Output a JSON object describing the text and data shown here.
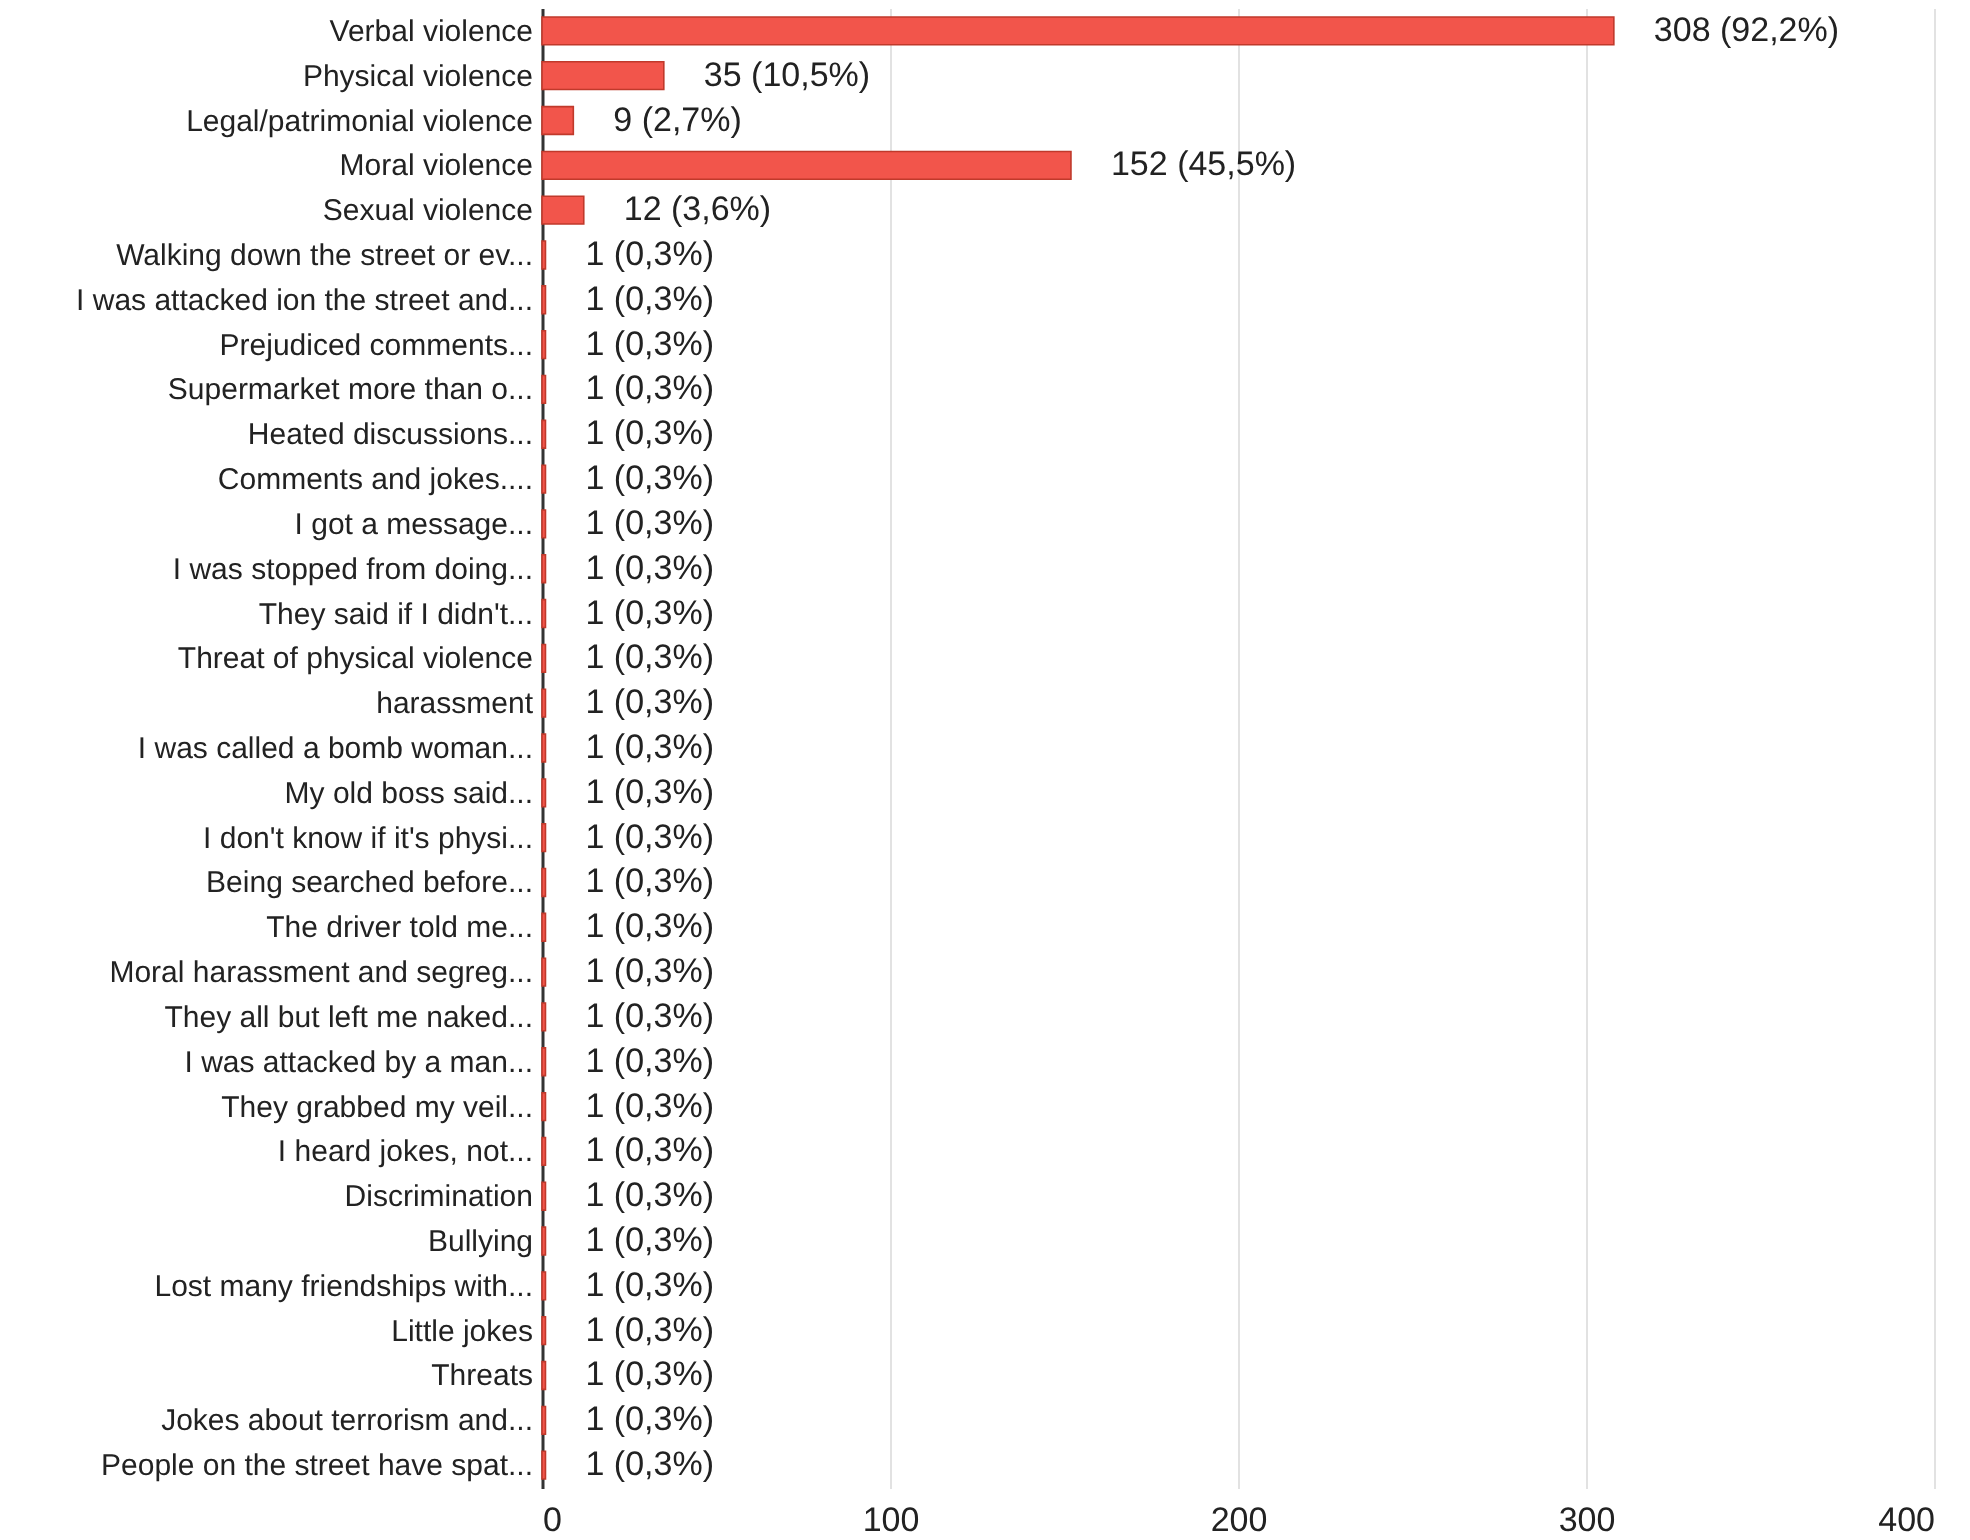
{
  "chart_data": {
    "type": "bar",
    "orientation": "horizontal",
    "categories": [
      "Verbal violence",
      "Physical violence",
      "Legal/patrimonial violence",
      "Moral violence",
      "Sexual violence",
      "Walking down the street or ev...",
      "I was attacked ion the street and...",
      "Prejudiced comments...",
      "Supermarket more than o...",
      "Heated discussions...",
      "Comments and jokes....",
      "I got a message...",
      "I was stopped from doing...",
      "They said if I didn't...",
      "Threat of physical violence",
      "harassment",
      "I was called a bomb woman...",
      "My old boss said...",
      "I don't know if it's physi...",
      "Being searched before...",
      "The driver told me...",
      "Moral harassment and segreg...",
      "They all but left me naked...",
      "I was attacked by a man...",
      "They grabbed my veil...",
      "I heard jokes, not...",
      "Discrimination",
      "Bullying",
      "Lost many friendships with...",
      "Little jokes",
      "Threats",
      "Jokes about terrorism and...",
      "People on the street have spat..."
    ],
    "values": [
      308,
      35,
      9,
      152,
      12,
      1,
      1,
      1,
      1,
      1,
      1,
      1,
      1,
      1,
      1,
      1,
      1,
      1,
      1,
      1,
      1,
      1,
      1,
      1,
      1,
      1,
      1,
      1,
      1,
      1,
      1,
      1,
      1
    ],
    "value_labels": [
      "308 (92,2%)",
      "35 (10,5%)",
      "9 (2,7%)",
      "152 (45,5%)",
      "12 (3,6%)",
      "1 (0,3%)",
      "1 (0,3%)",
      "1 (0,3%)",
      "1 (0,3%)",
      "1 (0,3%)",
      "1 (0,3%)",
      "1 (0,3%)",
      "1 (0,3%)",
      "1 (0,3%)",
      "1 (0,3%)",
      "1 (0,3%)",
      "1 (0,3%)",
      "1 (0,3%)",
      "1 (0,3%)",
      "1 (0,3%)",
      "1 (0,3%)",
      "1 (0,3%)",
      "1 (0,3%)",
      "1 (0,3%)",
      "1 (0,3%)",
      "1 (0,3%)",
      "1 (0,3%)",
      "1 (0,3%)",
      "1 (0,3%)",
      "1 (0,3%)",
      "1 (0,3%)",
      "1 (0,3%)",
      "1 (0,3%)"
    ],
    "color": "#f2554b",
    "xlim": [
      0,
      400
    ],
    "xticks": [
      0,
      100,
      200,
      300,
      400
    ],
    "grid": "x"
  }
}
